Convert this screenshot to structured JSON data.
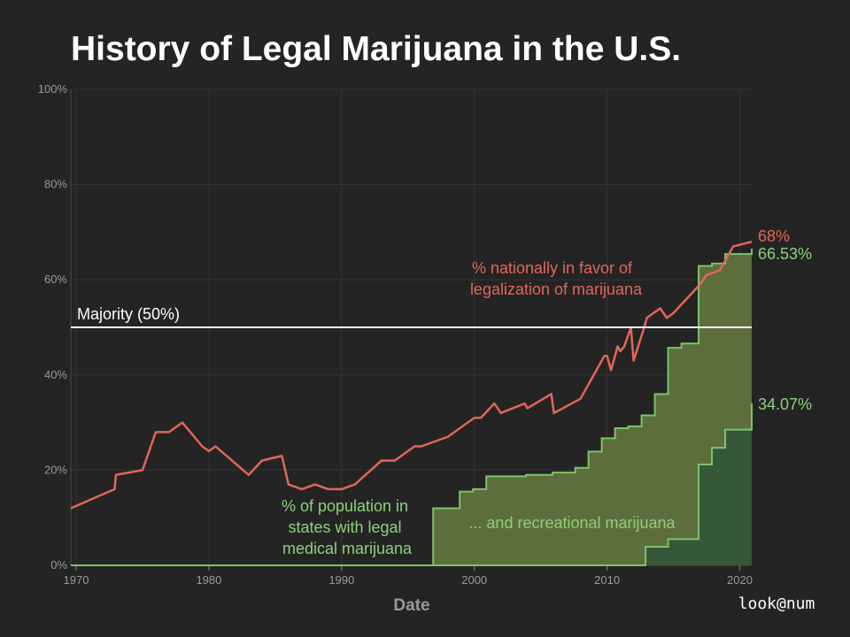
{
  "chart_data": {
    "type": "line",
    "title": "History of Legal Marijuana in the U.S.",
    "xlabel": "Date",
    "ylabel": "",
    "xlim": [
      1969.6,
      2020.9
    ],
    "ylim": [
      0,
      100
    ],
    "y_ticks": [
      0,
      20,
      40,
      60,
      80,
      100
    ],
    "y_tick_labels": [
      "0%",
      "20%",
      "40%",
      "60%",
      "80%",
      "100%"
    ],
    "x_ticks": [
      1970,
      1980,
      1990,
      2000,
      2010,
      2020
    ],
    "x_tick_labels": [
      "1970",
      "1980",
      "1990",
      "2000",
      "2010",
      "2020"
    ],
    "grid": true,
    "reference_line": {
      "y": 50,
      "label": "Majority (50%)",
      "color": "#ffffff"
    },
    "series": [
      {
        "key": "favor",
        "style": "line",
        "color": "#e0675a",
        "x": [
          1969.6,
          1972.9,
          1973.0,
          1975.0,
          1976.0,
          1977.0,
          1978.0,
          1979.5,
          1980.0,
          1980.5,
          1983.0,
          1984.0,
          1985.5,
          1986.0,
          1987.0,
          1988.0,
          1989.0,
          1990.0,
          1991.0,
          1993.0,
          1994.0,
          1995.5,
          1996.0,
          1998.0,
          2000.0,
          2000.5,
          2001.5,
          2002.0,
          2003.8,
          2004.0,
          2005.8,
          2006.0,
          2008.0,
          2009.8,
          2010.0,
          2010.3,
          2010.8,
          2011.0,
          2011.3,
          2011.8,
          2012.0,
          2012.8,
          2013.0,
          2014.0,
          2014.5,
          2015.0,
          2016.0,
          2017.0,
          2017.5,
          2018.5,
          2019.5,
          2020.9
        ],
        "y": [
          12,
          16,
          19,
          20,
          28,
          28,
          30,
          25,
          24,
          25,
          19,
          22,
          23,
          17,
          16,
          17,
          16,
          16,
          17,
          22,
          22,
          25,
          25,
          27,
          31,
          31,
          34,
          32,
          34,
          33,
          36,
          32,
          35,
          44,
          44,
          41,
          46,
          45,
          46,
          50,
          43,
          50,
          52,
          54,
          52,
          53,
          56,
          59,
          61,
          62,
          67,
          68
        ]
      },
      {
        "key": "medical",
        "style": "step-area",
        "color": "#7cc46c",
        "fill": "#5d6e3c",
        "x": [
          1969.6,
          1996.9,
          1998.9,
          1999.9,
          2000.9,
          2003.9,
          2005.9,
          2007.6,
          2008.6,
          2009.6,
          2010.6,
          2011.6,
          2012.6,
          2013.6,
          2014.6,
          2015.6,
          2016.9,
          2017.9,
          2018.9,
          2020.9
        ],
        "y": [
          0,
          12,
          15.5,
          16,
          18.7,
          19,
          19.5,
          20.5,
          23.9,
          26.7,
          28.8,
          29.2,
          31.5,
          36,
          45.7,
          46.6,
          62.9,
          63.4,
          65.4,
          66.53
        ]
      },
      {
        "key": "recreational",
        "style": "step-area",
        "color": "#7cc46c",
        "fill": "#355838",
        "x": [
          1969.6,
          2012.9,
          2014.6,
          2016.9,
          2017.9,
          2018.9,
          2020.9
        ],
        "y": [
          0,
          3.9,
          5.5,
          21.2,
          24.7,
          28.5,
          34.07
        ]
      }
    ],
    "annotations": [
      {
        "key": "favor",
        "lines": [
          "% nationally in favor of",
          "legalization of marijuana"
        ],
        "color": "#e0675a"
      },
      {
        "key": "medical",
        "lines": [
          "% of population in",
          "states with legal",
          "medical marijuana"
        ],
        "color": "#8ed07c"
      },
      {
        "key": "recreational",
        "lines": [
          "... and recreational marijuana"
        ],
        "color": "#8ed07c"
      }
    ],
    "end_labels": [
      {
        "text": "68%",
        "color": "#e0675a"
      },
      {
        "text": "66.53%",
        "color": "#8ed07c"
      },
      {
        "text": "34.07%",
        "color": "#8ed07c"
      }
    ],
    "brand": "look@num"
  }
}
